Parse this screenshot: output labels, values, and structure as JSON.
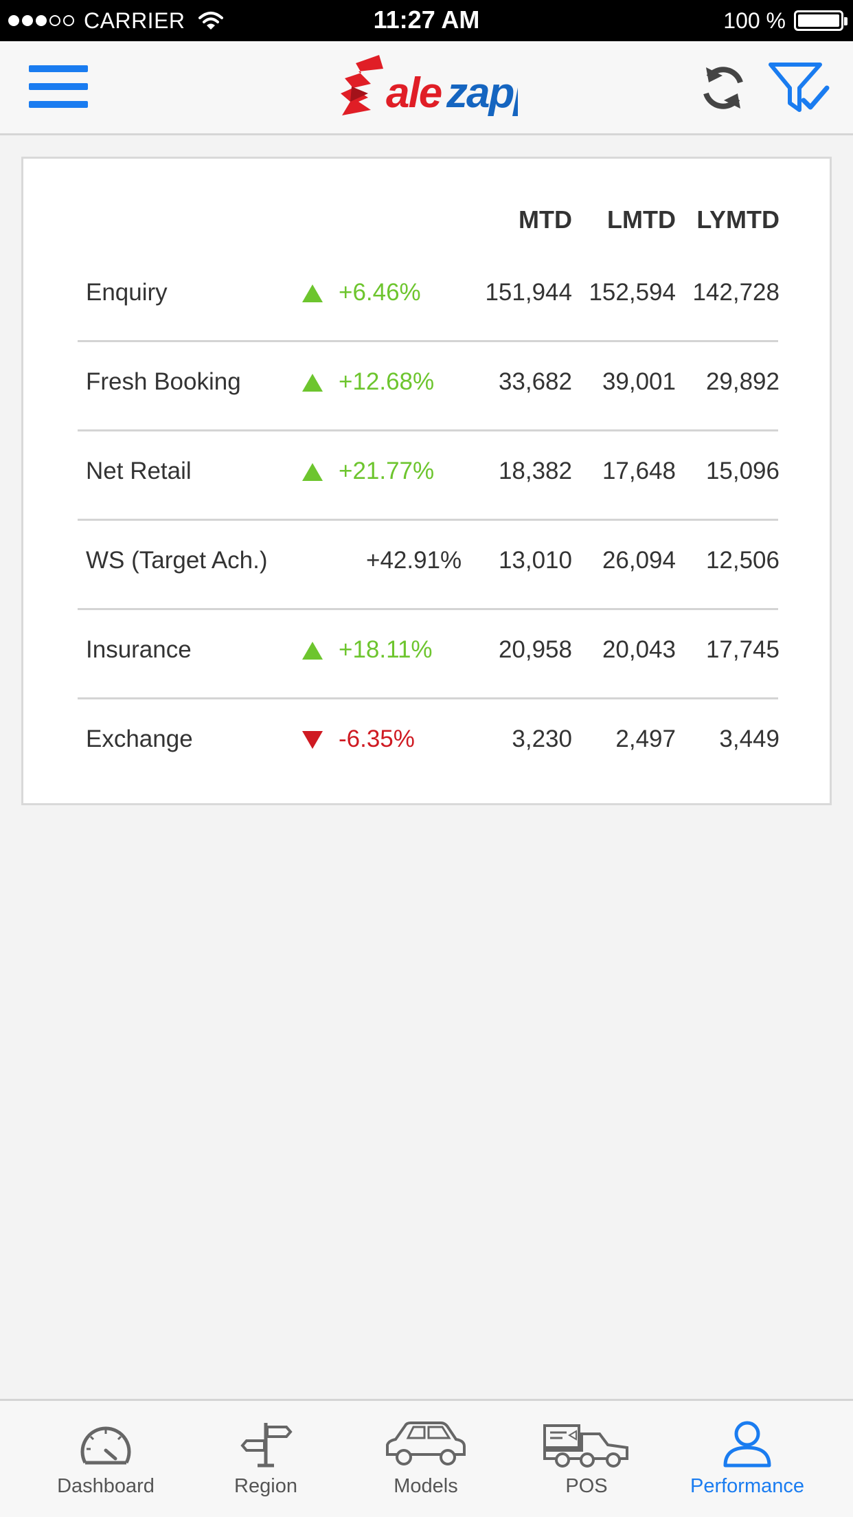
{
  "status_bar": {
    "carrier": "CARRIER",
    "time": "11:27 AM",
    "battery": "100 %",
    "signal_bars_filled": 3,
    "signal_bars_total": 5
  },
  "header": {
    "logo_text": "alezapp",
    "menu_icon": "hamburger-icon",
    "refresh_icon": "refresh-icon",
    "filter_icon": "filter-check-icon",
    "accent_color": "#1a7cf0",
    "logo_red": "#e01e26",
    "logo_blue": "#1565c0"
  },
  "table": {
    "columns": [
      "MTD",
      "LMTD",
      "LYMTD"
    ],
    "rows": [
      {
        "label": "Enquiry",
        "trend": "up",
        "change": "+6.46%",
        "mtd": "151,944",
        "lmtd": "152,594",
        "lymtd": "142,728"
      },
      {
        "label": "Fresh Booking",
        "trend": "up",
        "change": "+12.68%",
        "mtd": "33,682",
        "lmtd": "39,001",
        "lymtd": "29,892"
      },
      {
        "label": "Net Retail",
        "trend": "up",
        "change": "+21.77%",
        "mtd": "18,382",
        "lmtd": "17,648",
        "lymtd": "15,096"
      },
      {
        "label": "WS (Target Ach.)",
        "trend": "none",
        "change": "+42.91%",
        "mtd": "13,010",
        "lmtd": "26,094",
        "lymtd": "12,506"
      },
      {
        "label": "Insurance",
        "trend": "up",
        "change": "+18.11%",
        "mtd": "20,958",
        "lmtd": "20,043",
        "lymtd": "17,745"
      },
      {
        "label": "Exchange",
        "trend": "down",
        "change": "-6.35%",
        "mtd": "3,230",
        "lmtd": "2,497",
        "lymtd": "3,449"
      }
    ],
    "up_color": "#6dc52e",
    "down_color": "#cf1a22"
  },
  "tabs": [
    {
      "label": "Dashboard",
      "icon": "speedometer-icon",
      "active": false
    },
    {
      "label": "Region",
      "icon": "signpost-icon",
      "active": false
    },
    {
      "label": "Models",
      "icon": "car-icon",
      "active": false
    },
    {
      "label": "POS",
      "icon": "tow-truck-icon",
      "active": false
    },
    {
      "label": "Performance",
      "icon": "user-icon",
      "active": true
    }
  ]
}
